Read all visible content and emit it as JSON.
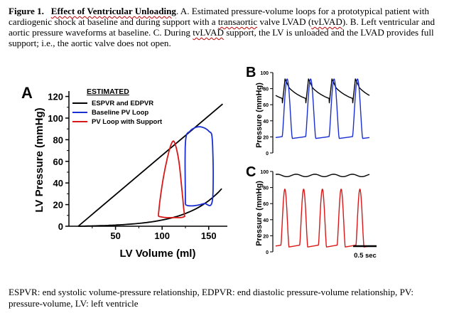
{
  "caption": {
    "fig_label": "Figure 1.",
    "fig_title": "Effect of Ventricular Unloading",
    "t1": ". A. Estimated pressure-volume loops for a prototypical patient with cardiogenic shock at baseline and during support with a ",
    "w1": "transaortic",
    "t2": " valve LVAD (",
    "w2": "tvLVAD",
    "t3": "). B. Left ventricular and aortic pressure waveforms at baseline. C. During ",
    "w3": "tvLVAD",
    "t4": " support, the LV is unloaded and the LVAD provides full support; i.e., the aortic valve does not open."
  },
  "footnote": "ESPVR: end systolic volume-pressure relationship, EDPVR: end diastolic pressure-volume relationship, PV: pressure-volume, LV: left ventricle",
  "colors": {
    "black": "#000000",
    "blue": "#1a2fd0",
    "red": "#d81818"
  },
  "panelA": {
    "letter": "A",
    "legend_title": "ESTIMATED",
    "legend": [
      "ESPVR and EDPVR",
      "Baseline PV Loop",
      "PV Loop with Support"
    ],
    "xlabel": "LV Volume (ml)",
    "ylabel": "LV Pressure (mmHg)",
    "xticks": [
      "50",
      "100",
      "150"
    ],
    "yticks": [
      "0",
      "20",
      "40",
      "60",
      "80",
      "100",
      "120"
    ]
  },
  "panelB": {
    "letter": "B",
    "ylabel": "Pressure (mmHg)",
    "yticks": [
      "0",
      "20",
      "40",
      "60",
      "80",
      "100"
    ]
  },
  "panelC": {
    "letter": "C",
    "ylabel": "Pressure (mmHg)",
    "yticks": [
      "0",
      "20",
      "40",
      "60",
      "80",
      "100"
    ],
    "scalebar_label": "0.5 sec"
  },
  "chart_data": [
    {
      "type": "line",
      "panel": "A",
      "xlabel": "LV Volume (ml)",
      "ylabel": "LV Pressure (mmHg)",
      "xlim": [
        0,
        170
      ],
      "ylim": [
        0,
        125
      ],
      "series": [
        {
          "name": "ESPVR and EDPVR",
          "color": "#000000",
          "kind": "espvr",
          "x": [
            10,
            165
          ],
          "y": [
            0,
            113
          ]
        },
        {
          "name": "ESPVR and EDPVR",
          "color": "#000000",
          "kind": "edpvr",
          "x": [
            10,
            40,
            70,
            100,
            120,
            140,
            150,
            160,
            165
          ],
          "y": [
            0,
            0.5,
            2,
            7,
            13,
            21,
            26,
            31,
            35
          ]
        },
        {
          "name": "Baseline PV Loop",
          "color": "#1a2fd0",
          "x": [
            125,
            125,
            130,
            140,
            150,
            154,
            154,
            145,
            135,
            128,
            125
          ],
          "y": [
            20,
            77,
            88,
            92,
            88,
            78,
            24,
            21,
            19,
            19,
            20
          ]
        },
        {
          "name": "PV Loop with Support",
          "color": "#d81818",
          "x": [
            96,
            98,
            102,
            107,
            111,
            114,
            118,
            121,
            123,
            124,
            124,
            120,
            112,
            104,
            97,
            96
          ],
          "y": [
            10,
            26,
            48,
            68,
            78,
            76,
            60,
            36,
            18,
            10,
            9,
            8,
            8,
            8,
            9,
            10
          ]
        }
      ]
    },
    {
      "type": "line",
      "panel": "B",
      "ylabel": "Pressure (mmHg)",
      "ylim": [
        0,
        100
      ],
      "series": [
        {
          "name": "",
          "color": "#000000",
          "kind": "aortic",
          "peak": 92,
          "trough": 60,
          "beats": 4
        },
        {
          "name": "",
          "color": "#1a2fd0",
          "kind": "lv",
          "peak": 92,
          "trough": 20,
          "beats": 4
        }
      ]
    },
    {
      "type": "line",
      "panel": "C",
      "ylabel": "Pressure (mmHg)",
      "ylim": [
        0,
        100
      ],
      "series": [
        {
          "name": "",
          "color": "#000000",
          "kind": "aortic-flat",
          "mean": 95,
          "ripple": 1.5
        },
        {
          "name": "",
          "color": "#d81818",
          "kind": "lv",
          "peak": 78,
          "trough": 8,
          "beats": 5
        }
      ]
    }
  ]
}
